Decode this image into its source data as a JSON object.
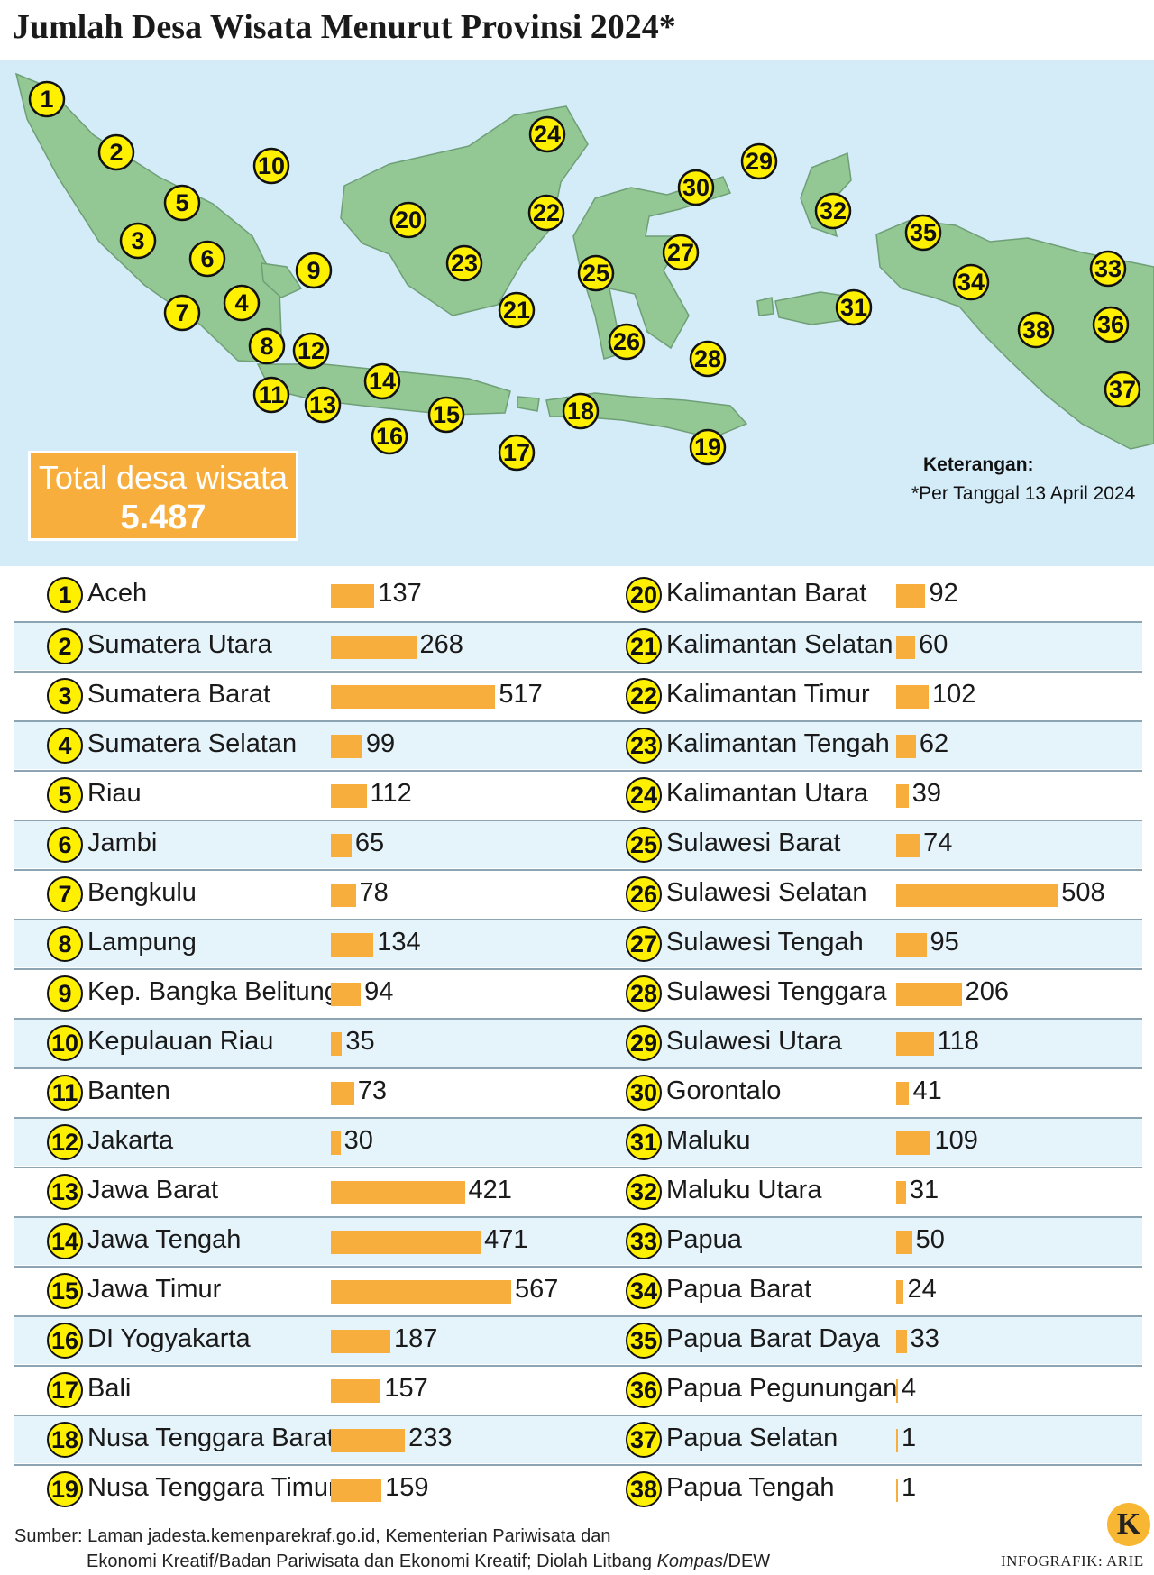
{
  "title": "Jumlah Desa Wisata Menurut Provinsi 2024*",
  "total": {
    "label": "Total desa wisata",
    "value": "5.487"
  },
  "keterangan": "Keterangan:",
  "note": "*Per Tanggal 13 April 2024",
  "colors": {
    "map_water": "#d3ecf8",
    "land": "#93c793",
    "marker": "#fff000",
    "bar": "#f8ae3c",
    "row_shade": "#e5f3fa"
  },
  "chart_data": {
    "type": "bar",
    "orientation": "horizontal",
    "categories": [
      "Aceh",
      "Sumatera Utara",
      "Sumatera Barat",
      "Sumatera Selatan",
      "Riau",
      "Jambi",
      "Bengkulu",
      "Lampung",
      "Kep. Bangka Belitung",
      "Kepulauan Riau",
      "Banten",
      "Jakarta",
      "Jawa Barat",
      "Jawa Tengah",
      "Jawa Timur",
      "DI Yogyakarta",
      "Bali",
      "Nusa Tenggara Barat",
      "Nusa Tenggara Timur",
      "Kalimantan Barat",
      "Kalimantan Selatan",
      "Kalimantan Timur",
      "Kalimantan Tengah",
      "Kalimantan Utara",
      "Sulawesi Barat",
      "Sulawesi Selatan",
      "Sulawesi Tengah",
      "Sulawesi Tenggara",
      "Sulawesi Utara",
      "Gorontalo",
      "Maluku",
      "Maluku Utara",
      "Papua",
      "Papua Barat",
      "Papua Barat Daya",
      "Papua Pegunungan",
      "Papua Selatan",
      "Papua Tengah"
    ],
    "values": [
      137,
      268,
      517,
      99,
      112,
      65,
      78,
      134,
      94,
      35,
      73,
      30,
      421,
      471,
      567,
      187,
      157,
      233,
      159,
      92,
      60,
      102,
      62,
      39,
      74,
      508,
      95,
      206,
      118,
      41,
      109,
      31,
      50,
      24,
      33,
      4,
      1,
      1
    ],
    "numbers": [
      "1",
      "2",
      "3",
      "4",
      "5",
      "6",
      "7",
      "8",
      "9",
      "10",
      "11",
      "12",
      "13",
      "14",
      "15",
      "16",
      "17",
      "18",
      "19",
      "20",
      "21",
      "22",
      "23",
      "24",
      "25",
      "26",
      "27",
      "28",
      "29",
      "30",
      "31",
      "32",
      "33",
      "34",
      "35",
      "36",
      "37",
      "38"
    ]
  },
  "source": {
    "line1": "Sumber: Laman jadesta.kemenparekraf.go.id, Kementerian Pariwisata dan",
    "line2a": "Ekonomi Kreatif/Badan Pariwisata dan Ekonomi Kreatif; Diolah Litbang ",
    "line2b": "Kompas",
    "line2c": "/DEW"
  },
  "logo_letter": "K",
  "credit": "INFOGRAFIK: ARIE"
}
